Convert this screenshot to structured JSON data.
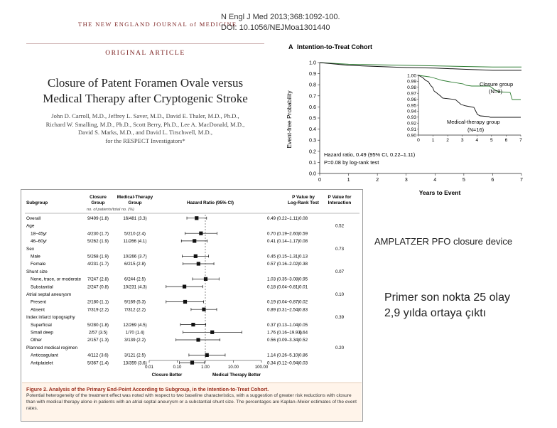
{
  "header": {
    "journal": "THE NEW ENGLAND JOURNAL of MEDICINE",
    "citation_line1": "N Engl J Med 2013;368:1092-100.",
    "citation_line2": "DOI: 10.1056/NEJMoa1301440"
  },
  "article": {
    "section": "ORIGINAL ARTICLE",
    "title_line1": "Closure of Patent Foramen Ovale versus",
    "title_line2": "Medical Therapy after Cryptogenic Stroke",
    "authors": [
      "John D. Carroll, M.D., Jeffrey L. Saver, M.D., David E. Thaler, M.D., Ph.D.,",
      "Richard W. Smalling, M.D., Ph.D., Scott Berry, Ph.D., Lee A. MacDonald, M.D.,",
      "David S. Marks, M.D., and David L. Tirschwell, M.D.,",
      "for the RESPECT Investigators*"
    ]
  },
  "km": {
    "panel_label": "A",
    "title": "Intention-to-Treat Cohort",
    "ylabel": "Event-free Probability",
    "xlabel": "Years to Event",
    "yticks": [
      "0.0",
      "0.1",
      "0.2",
      "0.3",
      "0.4",
      "0.5",
      "0.6",
      "0.7",
      "0.8",
      "0.9",
      "1.0"
    ],
    "xticks": [
      "0",
      "1",
      "2",
      "3",
      "4",
      "5",
      "6",
      "7"
    ],
    "inset_yticks": [
      "1.00",
      "0.99",
      "0.98",
      "0.97",
      "0.96",
      "0.95",
      "0.94",
      "0.93",
      "0.92",
      "0.91",
      "0.90"
    ],
    "inset_xticks": [
      "0",
      "1",
      "2",
      "3",
      "4",
      "5",
      "6",
      "7"
    ],
    "closure_label": "Closure group",
    "closure_n": "(N=9)",
    "medical_label": "Medical-therapy group",
    "medical_n": "(N=16)",
    "hr_text": "Hazard ratio, 0.49 (95% CI, 0.22–1.11)",
    "p_text": "P=0.08 by log-rank test",
    "colors": {
      "closure": "#2e7d32",
      "medical": "#111111"
    }
  },
  "chart_data": [
    {
      "type": "line",
      "title": "Intention-to-Treat Cohort",
      "xlabel": "Years to Event",
      "ylabel": "Event-free Probability",
      "xlim": [
        0,
        7
      ],
      "ylim": [
        0,
        1.0
      ],
      "series": [
        {
          "name": "Closure group",
          "x": [
            0,
            1,
            2,
            3,
            4,
            5,
            6,
            7
          ],
          "values": [
            1.0,
            0.985,
            0.98,
            0.975,
            0.97,
            0.965,
            0.96,
            0.96
          ]
        },
        {
          "name": "Medical-therapy group",
          "x": [
            0,
            1,
            2,
            3,
            4,
            5,
            6,
            7
          ],
          "values": [
            1.0,
            0.975,
            0.965,
            0.955,
            0.95,
            0.94,
            0.93,
            0.93
          ]
        }
      ],
      "inset": {
        "ylim": [
          0.9,
          1.0
        ],
        "xlim": [
          0,
          7
        ]
      }
    },
    {
      "type": "forest",
      "xscale": "log",
      "xlim": [
        0.01,
        100
      ],
      "rows": [
        {
          "label": "Overall",
          "indent": 0,
          "closure": "9/499 (1.8)",
          "medical": "16/481 (3.3)",
          "hr_text": "0.49 (0.22–1.11)",
          "hr": 0.49,
          "lo": 0.22,
          "hi": 1.11,
          "p": "0.08",
          "p_int": ""
        },
        {
          "label": "Age",
          "indent": 0,
          "header": true,
          "p_int": "0.52"
        },
        {
          "label": "18–45yr",
          "indent": 1,
          "closure": "4/230 (1.7)",
          "medical": "5/210 (2.4)",
          "hr_text": "0.70 (0.19–2.60)",
          "hr": 0.7,
          "lo": 0.19,
          "hi": 2.6,
          "p": "0.59",
          "p_int": ""
        },
        {
          "label": "46–60yr",
          "indent": 1,
          "closure": "5/262 (1.9)",
          "medical": "11/266 (4.1)",
          "hr_text": "0.41 (0.14–1.17)",
          "hr": 0.41,
          "lo": 0.14,
          "hi": 1.17,
          "p": "0.08",
          "p_int": ""
        },
        {
          "label": "Sex",
          "indent": 0,
          "header": true,
          "p_int": "0.73"
        },
        {
          "label": "Male",
          "indent": 1,
          "closure": "5/268 (1.9)",
          "medical": "10/266 (3.7)",
          "hr_text": "0.45 (0.15–1.31)",
          "hr": 0.45,
          "lo": 0.15,
          "hi": 1.31,
          "p": "0.13",
          "p_int": ""
        },
        {
          "label": "Female",
          "indent": 1,
          "closure": "4/231 (1.7)",
          "medical": "6/215 (2.8)",
          "hr_text": "0.57 (0.16–2.02)",
          "hr": 0.57,
          "lo": 0.16,
          "hi": 2.02,
          "p": "0.38",
          "p_int": ""
        },
        {
          "label": "Shunt size",
          "indent": 0,
          "header": true,
          "p_int": "0.07"
        },
        {
          "label": "None, trace, or moderate",
          "indent": 1,
          "closure": "7/247 (2.8)",
          "medical": "6/244 (2.5)",
          "hr_text": "1.03 (0.35–3.08)",
          "hr": 1.03,
          "lo": 0.35,
          "hi": 3.08,
          "p": "0.95",
          "p_int": ""
        },
        {
          "label": "Substantial",
          "indent": 1,
          "closure": "2/247 (0.8)",
          "medical": "10/231 (4.3)",
          "hr_text": "0.18 (0.04–0.81)",
          "hr": 0.18,
          "lo": 0.04,
          "hi": 0.81,
          "p": "0.01",
          "p_int": ""
        },
        {
          "label": "Atrial septal aneurysm",
          "indent": 0,
          "header": true,
          "p_int": "0.10"
        },
        {
          "label": "Present",
          "indent": 1,
          "closure": "2/180 (1.1)",
          "medical": "9/169 (5.3)",
          "hr_text": "0.19 (0.04–0.87)",
          "hr": 0.19,
          "lo": 0.04,
          "hi": 0.87,
          "p": "0.02",
          "p_int": ""
        },
        {
          "label": "Absent",
          "indent": 1,
          "closure": "7/319 (2.2)",
          "medical": "7/312 (2.2)",
          "hr_text": "0.89 (0.31–2.54)",
          "hr": 0.89,
          "lo": 0.31,
          "hi": 2.54,
          "p": "0.83",
          "p_int": ""
        },
        {
          "label": "Index infarct topography",
          "indent": 0,
          "header": true,
          "p_int": "0.39"
        },
        {
          "label": "Superficial",
          "indent": 1,
          "closure": "5/280 (1.8)",
          "medical": "12/269 (4.5)",
          "hr_text": "0.37 (0.13–1.04)",
          "hr": 0.37,
          "lo": 0.13,
          "hi": 1.04,
          "p": "0.05",
          "p_int": ""
        },
        {
          "label": "Small deep",
          "indent": 1,
          "closure": "2/57 (3.5)",
          "medical": "1/70 (1.4)",
          "hr_text": "1.76 (0.16–19.93)",
          "hr": 1.76,
          "lo": 0.16,
          "hi": 19.93,
          "p": "0.64",
          "p_int": ""
        },
        {
          "label": "Other",
          "indent": 1,
          "closure": "2/157 (1.3)",
          "medical": "3/139 (2.2)",
          "hr_text": "0.56 (0.09–3.34)",
          "hr": 0.56,
          "lo": 0.09,
          "hi": 3.34,
          "p": "0.52",
          "p_int": ""
        },
        {
          "label": "Planned medical regimen",
          "indent": 0,
          "header": true,
          "p_int": "0.20"
        },
        {
          "label": "Anticoagulant",
          "indent": 1,
          "closure": "4/112 (3.6)",
          "medical": "3/121 (2.5)",
          "hr_text": "1.14 (0.26–5.10)",
          "hr": 1.14,
          "lo": 0.26,
          "hi": 5.1,
          "p": "0.86",
          "p_int": ""
        },
        {
          "label": "Antiplatelet",
          "indent": 1,
          "closure": "5/367 (1.4)",
          "medical": "13/359 (3.6)",
          "hr_text": "0.34 (0.12–0.94)",
          "hr": 0.34,
          "lo": 0.12,
          "hi": 0.94,
          "p": "0.03",
          "p_int": ""
        }
      ]
    }
  ],
  "forest": {
    "headers": {
      "subgroup": "Subgroup",
      "closure_l1": "Closure",
      "closure_l2": "Group",
      "medical_l1": "Medical-Therapy",
      "medical_l2": "Group",
      "hr": "Hazard Ratio (95% CI)",
      "p1": "P Value by",
      "p2": "Log-Rank Test",
      "pi1": "P Value for",
      "pi2": "Interaction",
      "units": "no. of patients/total no. (%)"
    },
    "xticks": [
      "0.01",
      "0.10",
      "1.00",
      "10.00",
      "100.00"
    ],
    "closure_better": "Closure Better",
    "medical_better": "Medical Therapy Better",
    "caption_title": "Figure 2. Analysis of the Primary End-Point According to Subgroup, in the Intention-to-Treat Cohort.",
    "caption_text": "Potential heterogeneity of the treatment effect was noted with respect to two baseline characteristics, with a suggestion of greater risk reductions with closure than with medical therapy alone in patients with an atrial septal aneurysm or a substantial shunt size. The percentages are Kaplan–Meier estimates of the event rates."
  },
  "side": {
    "device": "AMPLATZER PFO closure device",
    "line1": "Primer son nokta 25 olay",
    "line2": "2,9 yılda ortaya çıktı"
  }
}
